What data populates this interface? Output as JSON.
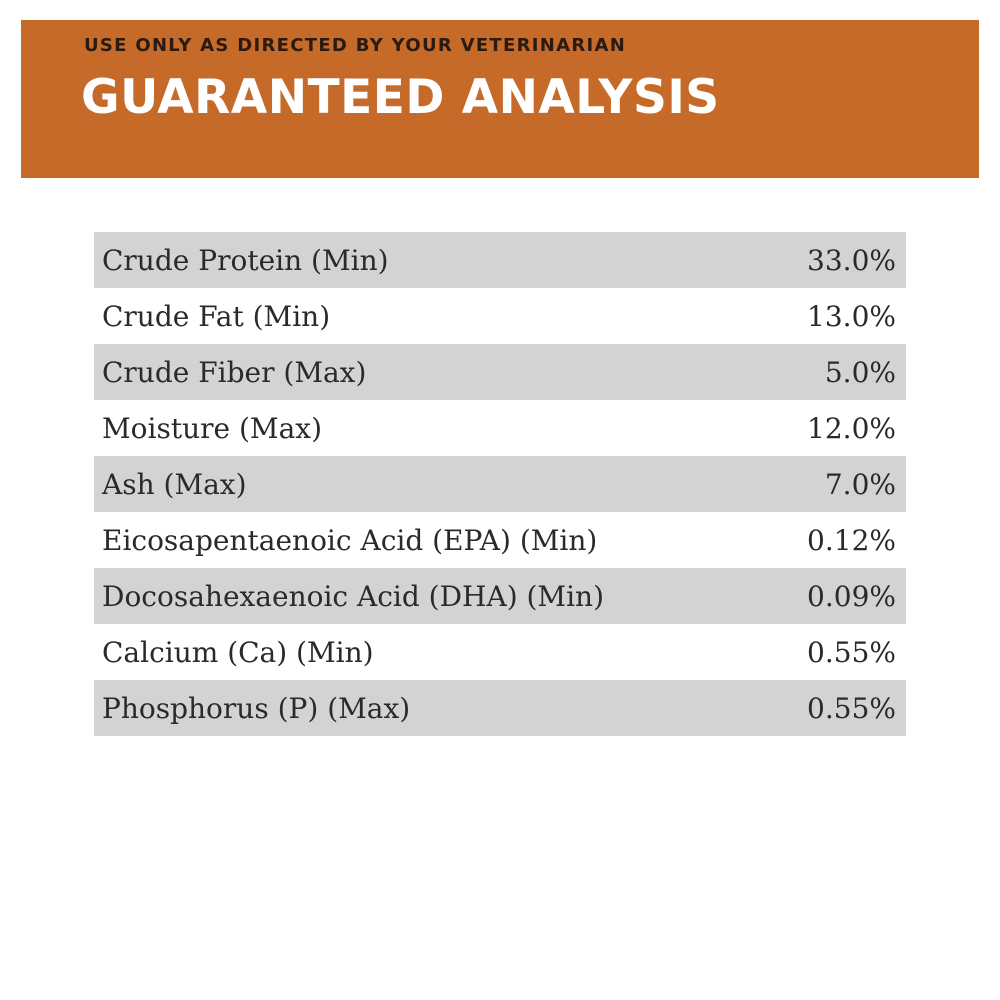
{
  "header": {
    "subtitle": "USE ONLY AS DIRECTED BY YOUR VETERINARIAN",
    "title": "GUARANTEED ANALYSIS",
    "background_color": "#c56a29"
  },
  "rows": [
    {
      "label": "Crude Protein (Min)",
      "value": "33.0%"
    },
    {
      "label": "Crude Fat (Min)",
      "value": "13.0%"
    },
    {
      "label": "Crude Fiber (Max)",
      "value": "5.0%"
    },
    {
      "label": "Moisture (Max)",
      "value": "12.0%"
    },
    {
      "label": "Ash (Max)",
      "value": "7.0%"
    },
    {
      "label": "Eicosapentaenoic Acid (EPA) (Min)",
      "value": "0.12%"
    },
    {
      "label": "Docosahexaenoic Acid (DHA) (Min)",
      "value": "0.09%"
    },
    {
      "label": "Calcium (Ca) (Min)",
      "value": "0.55%"
    },
    {
      "label": "Phosphorus (P) (Max)",
      "value": "0.55%"
    }
  ]
}
